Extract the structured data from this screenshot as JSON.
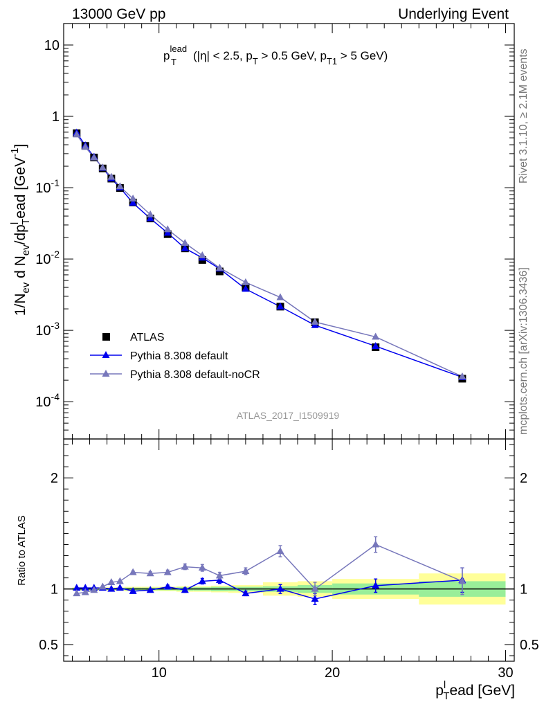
{
  "header": {
    "left": "13000 GeV pp",
    "right": "Underlying Event"
  },
  "side": {
    "rivet": "Rivet 3.1.10, ≥ 2.1M events",
    "mcplots": "mcplots.cern.ch [arXiv:1306.3436]"
  },
  "chart_data": [
    {
      "type": "line",
      "title": "p_T^lead (|η| < 2.5, p_T > 0.5 GeV, p_T1 > 5 GeV)",
      "watermark": "ATLAS_2017_I1509919",
      "ylabel": "1/N_ev d N_ev/dp_T^lead [GeV^-1]",
      "yscale": "log",
      "ylim": [
        3e-05,
        20
      ],
      "xlim": [
        4.5,
        30.5
      ],
      "ytick_labels": [
        "10^-4",
        "10^-3",
        "10^-2",
        "10^-1",
        "1",
        "10"
      ],
      "legend_position": "lower-left",
      "x": [
        5.25,
        5.75,
        6.25,
        6.75,
        7.25,
        7.75,
        8.5,
        9.5,
        10.5,
        11.5,
        12.5,
        13.5,
        15,
        17,
        19,
        22.5,
        27.5
      ],
      "series": [
        {
          "name": "ATLAS",
          "marker": "square",
          "color": "#000000",
          "values": [
            0.58,
            0.385,
            0.265,
            0.186,
            0.134,
            0.099,
            0.062,
            0.037,
            0.0223,
            0.0141,
            0.0097,
            0.0067,
            0.004,
            0.00215,
            0.0013,
            0.00058,
            0.00021
          ]
        },
        {
          "name": "Pythia 8.308 default",
          "marker": "triangle",
          "color": "#0000ee",
          "values": [
            0.59,
            0.39,
            0.27,
            0.189,
            0.134,
            0.1,
            0.061,
            0.037,
            0.0232,
            0.0141,
            0.0104,
            0.0073,
            0.0038,
            0.00215,
            0.00118,
            0.0006,
            0.00022
          ]
        },
        {
          "name": "Pythia 8.308 default-noCR",
          "marker": "triangle",
          "color": "#7777bb",
          "values": [
            0.555,
            0.372,
            0.264,
            0.191,
            0.141,
            0.104,
            0.07,
            0.042,
            0.026,
            0.0167,
            0.0112,
            0.0075,
            0.0047,
            0.0029,
            0.00131,
            0.00081,
            0.000225
          ]
        }
      ]
    },
    {
      "type": "line",
      "ylabel": "Ratio to ATLAS",
      "xlabel": "p_T^lead [GeV]",
      "ylim": [
        0.35,
        2.35
      ],
      "xlim": [
        4.5,
        30.5
      ],
      "yticks": [
        0.5,
        1,
        2
      ],
      "xticks": [
        10,
        20,
        30
      ],
      "x": [
        5.25,
        5.75,
        6.25,
        6.75,
        7.25,
        7.75,
        8.5,
        9.5,
        10.5,
        11.5,
        12.5,
        13.5,
        15,
        17,
        19,
        22.5,
        27.5
      ],
      "band_edges": [
        5,
        5.5,
        6,
        6.5,
        7,
        7.5,
        8,
        9,
        10,
        11,
        12,
        13,
        14,
        16,
        18,
        20,
        25,
        30
      ],
      "band_green": [
        0.01,
        0.01,
        0.01,
        0.01,
        0.01,
        0.01,
        0.012,
        0.012,
        0.012,
        0.015,
        0.015,
        0.02,
        0.02,
        0.025,
        0.035,
        0.05,
        0.07
      ],
      "band_yellow": [
        0.015,
        0.015,
        0.015,
        0.015,
        0.015,
        0.015,
        0.02,
        0.02,
        0.02,
        0.025,
        0.025,
        0.03,
        0.035,
        0.06,
        0.07,
        0.09,
        0.14
      ],
      "series": [
        {
          "name": "Pythia 8.308 default",
          "color": "#0000ee",
          "values": [
            1.01,
            1.01,
            1.01,
            1.01,
            1.0,
            1.01,
            0.98,
            0.99,
            1.02,
            0.99,
            1.07,
            1.08,
            0.96,
            1.0,
            0.91,
            1.03,
            1.08
          ],
          "errors": [
            0.005,
            0.005,
            0.005,
            0.005,
            0.005,
            0.008,
            0.01,
            0.01,
            0.015,
            0.02,
            0.025,
            0.03,
            0.02,
            0.04,
            0.05,
            0.06,
            0.11
          ]
        },
        {
          "name": "Pythia 8.308 default-noCR",
          "color": "#7777bb",
          "values": [
            0.96,
            0.97,
            0.99,
            1.02,
            1.06,
            1.07,
            1.15,
            1.14,
            1.15,
            1.2,
            1.19,
            1.12,
            1.16,
            1.34,
            1.0,
            1.4,
            1.07
          ],
          "errors": [
            0.005,
            0.005,
            0.005,
            0.005,
            0.008,
            0.01,
            0.012,
            0.015,
            0.02,
            0.025,
            0.03,
            0.03,
            0.03,
            0.05,
            0.06,
            0.07,
            0.12
          ]
        }
      ]
    }
  ]
}
